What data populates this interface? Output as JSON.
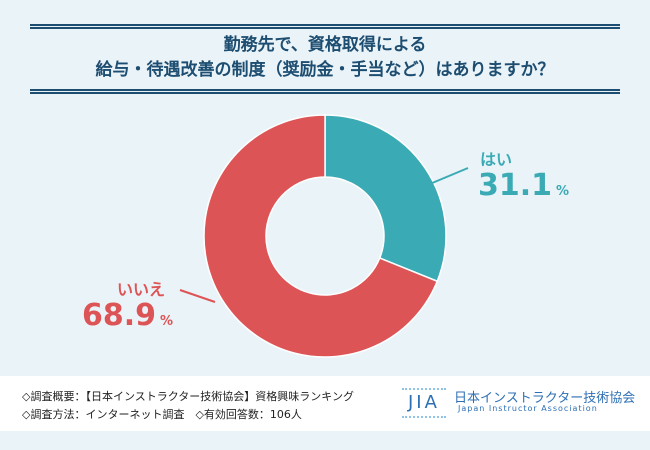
{
  "title": [
    "勤務先で、資格取得による",
    "給与・待遇改善の制度（奨励金・手当など）はありますか？"
  ],
  "chart_data": {
    "type": "pie",
    "donut": true,
    "title": "勤務先で、資格取得による給与・待遇改善の制度（奨励金・手当など）はありますか？",
    "categories": [
      "はい",
      "いいえ"
    ],
    "values": [
      31.1,
      68.9
    ],
    "value_labels": [
      "31.1",
      "68.9"
    ],
    "unit": "%",
    "colors": [
      "#3aaab5",
      "#dd5456"
    ]
  },
  "footer": {
    "note1": "◇調査概要：【日本インストラクター技術協会】資格興味ランキング",
    "note2": "◇調査方法：インターネット調査　◇有効回答数：106人",
    "logo_mark": "JIA",
    "logo_name": "日本インストラクター技術協会",
    "logo_sub": "Japan Instructor Association"
  }
}
